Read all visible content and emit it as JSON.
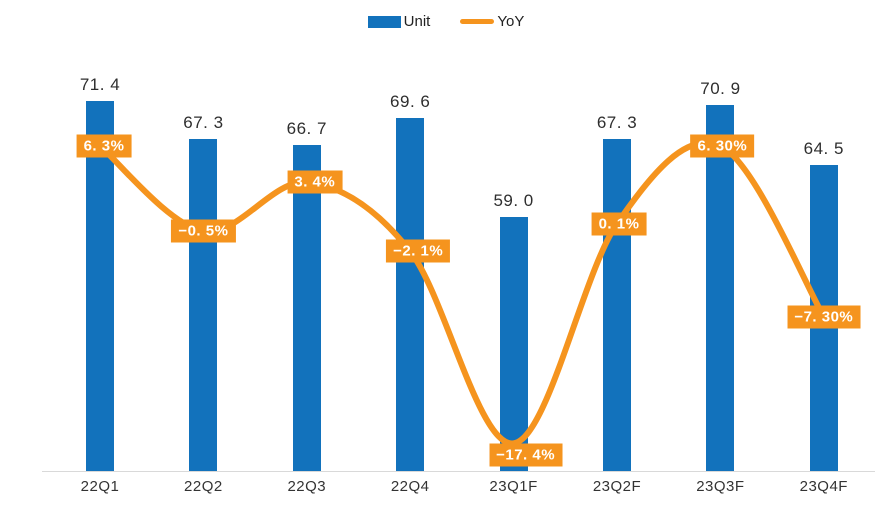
{
  "legend": {
    "items": [
      {
        "label": "Unit",
        "swatch": "bar-swatch-icon",
        "color": "#1272BC"
      },
      {
        "label": "YoY",
        "swatch": "line-swatch-icon",
        "color": "#F5941E"
      }
    ]
  },
  "colors": {
    "bar": "#1272BC",
    "line": "#F5941E",
    "label_box_bg": "#F5941E",
    "label_box_text": "#FFFFFF",
    "value_text": "#2E2E2E",
    "category_text": "#333333",
    "baseline": "#D9D9D9",
    "background": "#FFFFFF"
  },
  "chart_data": {
    "type": "combo (bar + smoothed line)",
    "title": "",
    "categories": [
      "22Q1",
      "22Q2",
      "22Q3",
      "22Q4",
      "23Q1F",
      "23Q2F",
      "23Q3F",
      "23Q4F"
    ],
    "series": [
      {
        "name": "Unit",
        "type": "bar",
        "axis": "left",
        "color": "#1272BC",
        "values": [
          71.4,
          67.3,
          66.7,
          69.6,
          59.0,
          67.3,
          70.9,
          64.5
        ],
        "value_labels": [
          "71.4",
          "67.3",
          "66.7",
          "69.6",
          "59.0",
          "67.3",
          "70.9",
          "64.5"
        ]
      },
      {
        "name": "YoY",
        "type": "line",
        "axis": "right",
        "color": "#F5941E",
        "values_pct": [
          6.3,
          -0.5,
          3.4,
          -2.1,
          -17.4,
          0.1,
          6.3,
          -7.3
        ],
        "value_labels": [
          "6.3%",
          "-0.5%",
          "3.4%",
          "-2.1%",
          "-17.4%",
          "0.1%",
          "6.30%",
          "-7.30%"
        ]
      }
    ],
    "left_axis": {
      "visible": false,
      "ylim_estimated": [
        32,
        75
      ]
    },
    "right_axis": {
      "visible": false,
      "ylim_estimated": [
        -20,
        13
      ],
      "unit": "%"
    },
    "grid": false,
    "legend_position": "top-center",
    "x_axis_baseline": true
  }
}
